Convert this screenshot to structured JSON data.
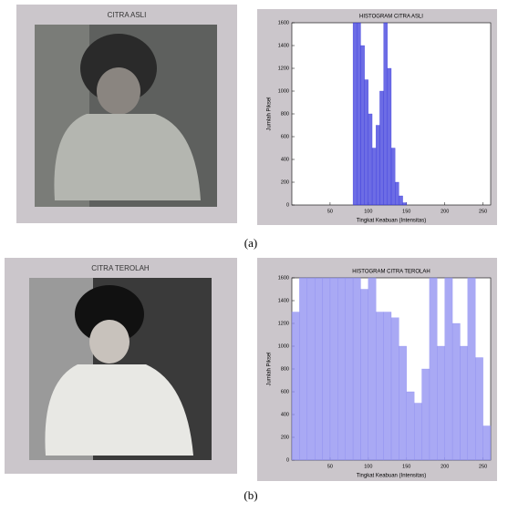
{
  "panels": [
    {
      "image_title": "CITRA ASLI",
      "caption": "(a)"
    },
    {
      "image_title": "CITRA TEROLAH",
      "caption": "(b)"
    }
  ],
  "chart_data": [
    {
      "type": "histogram",
      "title": "HISTOGRAM CITRA ASLI",
      "x_label": "Tingkat Keabuan (Intensitas)",
      "y_label": "Jumlah Piksel",
      "bins": [
        80,
        85,
        90,
        95,
        100,
        105,
        110,
        115,
        120,
        125,
        130,
        135,
        140,
        145,
        150
      ],
      "values": [
        1600,
        1600,
        1400,
        1100,
        800,
        500,
        700,
        1000,
        1600,
        1200,
        500,
        200,
        80,
        20
      ],
      "color": "#3b3bdc",
      "xlim": [
        0,
        260
      ],
      "xticks": [
        50,
        100,
        150,
        200,
        250
      ],
      "ylim": [
        0,
        1600
      ],
      "yticks": [
        0,
        200,
        400,
        600,
        800,
        1000,
        1200,
        1400,
        1600
      ]
    },
    {
      "type": "histogram",
      "title": "HISTOGRAM CITRA TEROLAH",
      "x_label": "Tingkat Keabuan (Intensitas)",
      "y_label": "Jumlah Piksel",
      "bins": [
        0,
        10,
        20,
        30,
        40,
        50,
        60,
        70,
        80,
        90,
        100,
        110,
        120,
        130,
        140,
        150,
        160,
        170,
        180,
        190,
        200,
        210,
        220,
        230,
        240,
        250,
        260
      ],
      "values": [
        1300,
        1600,
        1600,
        1600,
        1600,
        1600,
        1600,
        1600,
        1600,
        1500,
        1600,
        1300,
        1300,
        1250,
        1000,
        600,
        500,
        800,
        1600,
        1000,
        1600,
        1200,
        1000,
        1600,
        900,
        300
      ],
      "color": "#8c8cf0",
      "xlim": [
        0,
        260
      ],
      "xticks": [
        50,
        100,
        150,
        200,
        250
      ],
      "ylim": [
        0,
        1600
      ],
      "yticks": [
        0,
        200,
        400,
        600,
        800,
        1000,
        1200,
        1400,
        1600
      ]
    }
  ]
}
